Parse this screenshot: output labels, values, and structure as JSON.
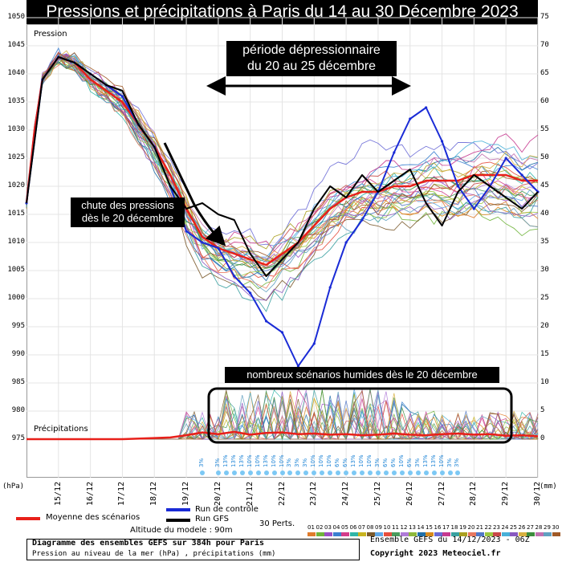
{
  "title": "Pressions et précipitations à Paris du 14 au 30 Décembre 2023",
  "labels": {
    "pression": "Pression",
    "precip": "Précipitations",
    "hpa_unit": "(hPa)",
    "mm_unit": "(mm)"
  },
  "annotations": {
    "period": [
      "période dépressionnaire",
      "du 20 au 25 décembre"
    ],
    "drop": [
      "chute des pressions",
      "dès le 20 décembre"
    ],
    "humid": "nombreux scénarios humides dès le 20 décembre"
  },
  "legend": {
    "mean": "Moyenne des scénarios",
    "control": "Run de contrôle",
    "gfs": "Run GFS",
    "perts": "30 Perts.",
    "altitude": "Altitude du modele : 90m",
    "mean_color": "#e8201a",
    "control_color": "#1a2bd6",
    "gfs_color": "#000000"
  },
  "members": [
    "01",
    "02",
    "03",
    "04",
    "05",
    "06",
    "07",
    "08",
    "09",
    "10",
    "11",
    "12",
    "13",
    "14",
    "15",
    "16",
    "17",
    "18",
    "19",
    "20",
    "21",
    "22",
    "23",
    "24",
    "25",
    "26",
    "27",
    "28",
    "29",
    "30"
  ],
  "member_colors": [
    "#e07c2c",
    "#6fb43a",
    "#9a4fc4",
    "#3a7fd0",
    "#d43c8a",
    "#2fb5a8",
    "#c9b41e",
    "#7b5a2c",
    "#5fa8e8",
    "#e64d3c",
    "#4a9c5d",
    "#b07ad8",
    "#8db83a",
    "#1f6fa8",
    "#d88a1c",
    "#6a6ad6",
    "#c6398f",
    "#39a0a0",
    "#aaa020",
    "#e87860",
    "#5078c8",
    "#9ac840",
    "#c84848",
    "#48b0d8",
    "#8858c0",
    "#d8b040",
    "#3c8c3c",
    "#c070b0",
    "#60a0c0",
    "#a05a28"
  ],
  "footer": {
    "diagram": "Diagramme des ensembles GEFS sur 384h pour Paris",
    "subtitle": "Pression au niveau de la mer (hPa) , précipitations (mm)",
    "run": "Ensemble GEFS du 14/12/2023 - 06Z",
    "copyright": "Copyright 2023 Meteociel.fr"
  },
  "chart_data": {
    "type": "line",
    "title": "Pressions et précipitations à Paris du 14 au 30 Décembre 2023",
    "x_ticks": [
      "15/12",
      "16/12",
      "17/12",
      "18/12",
      "19/12",
      "20/12",
      "21/12",
      "22/12",
      "23/12",
      "24/12",
      "25/12",
      "26/12",
      "27/12",
      "28/12",
      "29/12",
      "30/12"
    ],
    "x_range_days": [
      0,
      16
    ],
    "ylim_pressure": [
      975,
      1050
    ],
    "y_ticks_pressure": [
      975,
      980,
      985,
      990,
      995,
      1000,
      1005,
      1010,
      1015,
      1020,
      1025,
      1030,
      1035,
      1040,
      1045,
      1050
    ],
    "ylim_precip_mm": [
      0,
      75
    ],
    "y_ticks_precip": [
      0,
      5,
      10,
      15,
      20,
      25,
      30,
      35,
      40,
      45,
      50,
      55,
      60,
      65,
      70,
      75
    ],
    "series": [
      {
        "name": "Moyenne des scénarios",
        "axis": "pressure",
        "color": "#e8201a",
        "width": 2.5,
        "x": [
          0,
          0.25,
          0.5,
          1,
          1.5,
          2,
          2.5,
          3,
          3.5,
          4,
          4.5,
          5,
          5.5,
          6,
          6.5,
          7,
          7.5,
          8,
          8.5,
          9,
          9.5,
          10,
          10.5,
          11,
          11.5,
          12,
          12.5,
          13,
          13.5,
          14,
          14.5,
          15,
          15.5,
          16
        ],
        "values": [
          1017,
          1030,
          1039,
          1043,
          1042,
          1039,
          1037,
          1035,
          1031,
          1027,
          1022,
          1016,
          1011,
          1009,
          1008,
          1007,
          1006,
          1008,
          1010,
          1013,
          1016,
          1018,
          1019,
          1019,
          1020,
          1020,
          1021,
          1021,
          1021,
          1022,
          1022,
          1022,
          1021,
          1021
        ]
      },
      {
        "name": "Run de contrôle",
        "axis": "pressure",
        "color": "#1a2bd6",
        "width": 2,
        "x": [
          0,
          0.5,
          1,
          1.5,
          2,
          2.5,
          3,
          3.5,
          4,
          4.5,
          5,
          5.5,
          6,
          6.5,
          7,
          7.5,
          8,
          8.5,
          9,
          9.5,
          10,
          10.5,
          11,
          11.5,
          12,
          12.5,
          13,
          13.5,
          14,
          14.5,
          15,
          15.5,
          16
        ],
        "values": [
          1017,
          1039,
          1043,
          1042,
          1040,
          1038,
          1036,
          1031,
          1027,
          1020,
          1012,
          1010,
          1009,
          1004,
          1001,
          996,
          994,
          988,
          992,
          1002,
          1010,
          1014,
          1019,
          1026,
          1032,
          1034,
          1028,
          1020,
          1016,
          1020,
          1025,
          1022,
          1019
        ]
      },
      {
        "name": "Run GFS",
        "axis": "pressure",
        "color": "#000000",
        "width": 2,
        "x": [
          0,
          0.5,
          1,
          1.5,
          2,
          2.5,
          3,
          3.5,
          4,
          4.5,
          5,
          5.5,
          6,
          6.5,
          7,
          7.5,
          8,
          8.5,
          9,
          9.5,
          10,
          10.5,
          11,
          11.5,
          12,
          12.5,
          13,
          13.5,
          14,
          14.5,
          15,
          15.5,
          16
        ],
        "values": [
          1017,
          1039,
          1043,
          1042,
          1040,
          1038,
          1037,
          1031,
          1027,
          1020,
          1016,
          1017,
          1015,
          1014,
          1008,
          1004,
          1007,
          1010,
          1016,
          1020,
          1018,
          1022,
          1019,
          1021,
          1023,
          1017,
          1013,
          1019,
          1022,
          1020,
          1018,
          1016,
          1019
        ]
      },
      {
        "name": "Moyenne précipitations",
        "axis": "precip",
        "color": "#e8201a",
        "width": 2.5,
        "x": [
          0,
          1,
          2,
          3,
          4,
          4.5,
          5,
          5.5,
          6,
          6.5,
          7,
          7.5,
          8,
          8.5,
          9,
          9.5,
          10,
          10.5,
          11,
          11.5,
          12,
          12.5,
          13,
          13.5,
          14,
          14.5,
          15,
          15.5,
          16
        ],
        "values": [
          0,
          0,
          0,
          0,
          0.2,
          0.3,
          0.7,
          1.2,
          0.9,
          1.3,
          0.8,
          1.1,
          1.2,
          0.9,
          1.0,
          0.8,
          0.9,
          0.7,
          0.8,
          1.0,
          0.8,
          0.7,
          0.9,
          1.0,
          0.8,
          0.9,
          0.6,
          0.7,
          0.5
        ]
      }
    ],
    "precip_probability_pct": [
      "3%",
      "3%",
      "13%",
      "13%",
      "13%",
      "10%",
      "10%",
      "13%",
      "10%",
      "10%",
      "3%",
      "3%",
      "3%",
      "10%",
      "10%",
      "10%",
      "6%",
      "6%",
      "13%",
      "10%",
      "10%",
      "3%",
      "6%",
      "6%",
      "10%",
      "6%",
      "3%",
      "13%",
      "13%",
      "10%",
      "3%",
      "3%"
    ]
  }
}
